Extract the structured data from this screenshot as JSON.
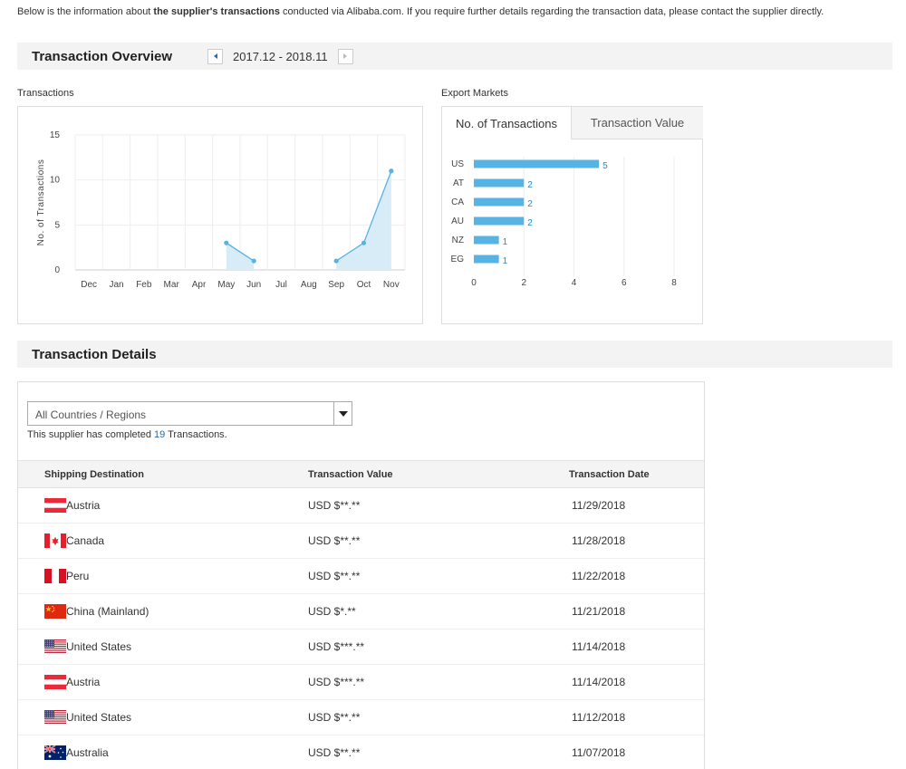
{
  "intro": {
    "part1": "Below is the information about ",
    "bold": "the supplier's transactions",
    "part2": " conducted via Alibaba.com. If you require further details regarding the transaction data, please contact the supplier directly."
  },
  "overview": {
    "title": "Transaction Overview",
    "period": "2017.12 - 2018.11"
  },
  "transactions_chart_label": "Transactions",
  "export_markets_label": "Export Markets",
  "export_tabs": [
    {
      "label": "No. of Transactions",
      "active": true
    },
    {
      "label": "Transaction Value",
      "active": false
    }
  ],
  "chart_data": [
    {
      "type": "area",
      "x": [
        "Dec",
        "Jan",
        "Feb",
        "Mar",
        "Apr",
        "May",
        "Jun",
        "Jul",
        "Aug",
        "Sep",
        "Oct",
        "Nov"
      ],
      "values": [
        null,
        null,
        null,
        null,
        null,
        3,
        1,
        null,
        null,
        1,
        3,
        11
      ],
      "ylabel": "No. of Transactions",
      "ylim": [
        0,
        15
      ],
      "yticks": [
        0,
        5,
        10,
        15
      ],
      "grid": true,
      "color": "#57b3e4",
      "fill": "#d8ecf8"
    },
    {
      "type": "bar",
      "orientation": "horizontal",
      "categories": [
        "US",
        "AT",
        "CA",
        "AU",
        "NZ",
        "EG"
      ],
      "values": [
        5,
        2,
        2,
        2,
        1,
        1
      ],
      "xlim": [
        0,
        8
      ],
      "xticks": [
        0,
        2,
        4,
        6,
        8
      ],
      "color": "#57b3e4"
    }
  ],
  "details": {
    "title": "Transaction Details",
    "select_value": "All Countries / Regions",
    "completed_prefix": "This supplier has completed ",
    "completed_count": "19",
    "completed_suffix": " Transactions.",
    "columns": [
      "Shipping Destination",
      "Transaction Value",
      "Transaction Date"
    ],
    "rows": [
      {
        "flag": "austria-flag",
        "dest": "Austria",
        "value": "USD $**.**",
        "date": "11/29/2018"
      },
      {
        "flag": "canada-flag",
        "dest": "Canada",
        "value": "USD $**.**",
        "date": "11/28/2018"
      },
      {
        "flag": "peru-flag",
        "dest": "Peru",
        "value": "USD $**.**",
        "date": "11/22/2018"
      },
      {
        "flag": "china-flag",
        "dest": "China (Mainland)",
        "value": "USD $*.**",
        "date": "11/21/2018"
      },
      {
        "flag": "usa-flag",
        "dest": "United States",
        "value": "USD $***.**",
        "date": "11/14/2018"
      },
      {
        "flag": "austria-flag",
        "dest": "Austria",
        "value": "USD $***.**",
        "date": "11/14/2018"
      },
      {
        "flag": "usa-flag",
        "dest": "United States",
        "value": "USD $**.**",
        "date": "11/12/2018"
      },
      {
        "flag": "australia-flag",
        "dest": "Australia",
        "value": "USD $**.**",
        "date": "11/07/2018"
      }
    ]
  },
  "colors": {
    "accent": "#1a6fb8",
    "bar": "#57b3e4"
  }
}
